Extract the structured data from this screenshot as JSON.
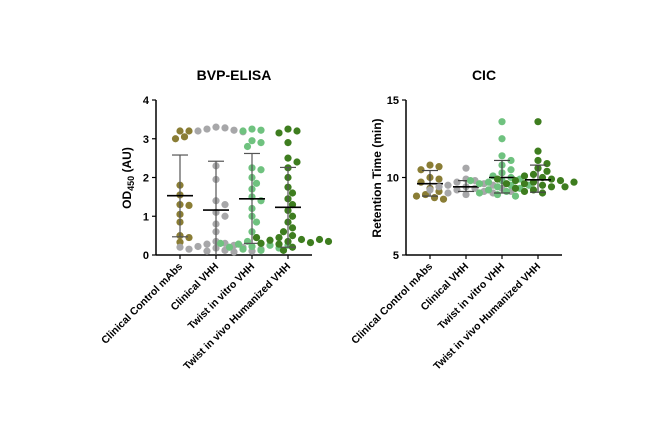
{
  "chart_data": [
    {
      "type": "scatter",
      "title": "BVP-ELISA",
      "ylabel_main": "OD",
      "ylabel_sub": "450",
      "ylabel_unit": " (AU)",
      "ylim": [
        0,
        4
      ],
      "yticks": [
        "0",
        "1",
        "2",
        "3",
        "4"
      ],
      "categories": [
        "Clinical Control mAbs",
        "Clinical VHH",
        "Twist in vitro VHH",
        "Twist in vivo Humanized VHH"
      ],
      "series": [
        {
          "color": "#8a7d35",
          "mean": 1.53,
          "err": [
            0.47,
            2.58
          ],
          "values": [
            3.2,
            3.2,
            3.05,
            3.0,
            1.8,
            1.55,
            1.3,
            1.28,
            1.05,
            0.85,
            0.5,
            0.45,
            0.33
          ]
        },
        {
          "color": "#a7a7a9",
          "mean": 1.16,
          "err": [
            0,
            2.42
          ],
          "values": [
            3.3,
            3.28,
            3.25,
            3.22,
            3.2,
            3.18,
            2.3,
            1.95,
            1.4,
            1.3,
            1.1,
            1.0,
            0.8,
            0.6,
            0.35,
            0.3,
            0.28,
            0.25,
            0.22,
            0.2,
            0.18,
            0.15,
            0.12,
            0.1,
            0.1,
            0.08,
            0.2,
            0.15
          ]
        },
        {
          "color": "#6fc27f",
          "mean": 1.45,
          "err": [
            0.3,
            2.62
          ],
          "values": [
            3.25,
            3.22,
            3.2,
            2.95,
            2.9,
            2.8,
            2.25,
            2.2,
            2.0,
            1.85,
            1.7,
            1.5,
            1.4,
            1.2,
            1.0,
            0.85,
            0.6,
            0.45,
            0.35,
            0.3,
            0.28,
            0.25,
            0.22,
            0.2,
            0.18,
            0.15,
            0.12,
            0.3,
            0.25
          ]
        },
        {
          "color": "#3e7d1f",
          "mean": 1.23,
          "err": [
            0.2,
            2.26
          ],
          "values": [
            3.25,
            3.2,
            3.15,
            2.9,
            2.5,
            2.4,
            2.25,
            2.0,
            1.75,
            1.6,
            1.45,
            1.3,
            1.15,
            1.0,
            0.85,
            0.7,
            0.6,
            0.5,
            0.45,
            0.4,
            0.38,
            0.35,
            0.32,
            0.3,
            0.28,
            0.4,
            0.45,
            0.35,
            0.2,
            0.12
          ]
        }
      ]
    },
    {
      "type": "scatter",
      "title": "CIC",
      "ylabel_main": "Retention Time (min)",
      "ylim": [
        5,
        15
      ],
      "yticks": [
        "5",
        "10",
        "15"
      ],
      "categories": [
        "Clinical Control mAbs",
        "Clinical VHH",
        "Twist in vitro VHH",
        "Twist in vivo Humanized VHH"
      ],
      "series": [
        {
          "color": "#8a7d35",
          "mean": 9.6,
          "err": [
            8.8,
            10.45
          ],
          "values": [
            10.8,
            10.7,
            10.5,
            10.0,
            9.9,
            9.7,
            9.3,
            9.1,
            8.9,
            8.8,
            8.7,
            8.6
          ]
        },
        {
          "color": "#a7a7a9",
          "mean": 9.4,
          "err": [
            9.1,
            9.8
          ],
          "values": [
            10.6,
            9.9,
            9.8,
            9.7,
            9.6,
            9.5,
            9.5,
            9.4,
            9.4,
            9.3,
            9.3,
            9.2,
            9.2,
            9.1,
            9.1,
            9.0,
            9.0,
            8.9
          ]
        },
        {
          "color": "#6fc27f",
          "mean": 10.0,
          "err": [
            9.0,
            11.1
          ],
          "values": [
            13.6,
            12.5,
            11.4,
            11.1,
            10.8,
            10.5,
            10.3,
            10.1,
            10.0,
            9.9,
            9.8,
            9.7,
            9.6,
            9.5,
            9.4,
            9.3,
            9.2,
            9.1,
            9.0,
            8.9,
            8.8,
            9.5,
            9.8
          ]
        },
        {
          "color": "#3e7d1f",
          "mean": 9.85,
          "err": [
            9.05,
            10.8
          ],
          "values": [
            13.6,
            11.7,
            11.1,
            10.9,
            10.6,
            10.4,
            10.2,
            10.1,
            10.0,
            9.9,
            9.8,
            9.8,
            9.7,
            9.6,
            9.5,
            9.4,
            9.4,
            9.3,
            9.2,
            9.1,
            9.0,
            9.6,
            9.7,
            9.9
          ]
        }
      ]
    }
  ]
}
